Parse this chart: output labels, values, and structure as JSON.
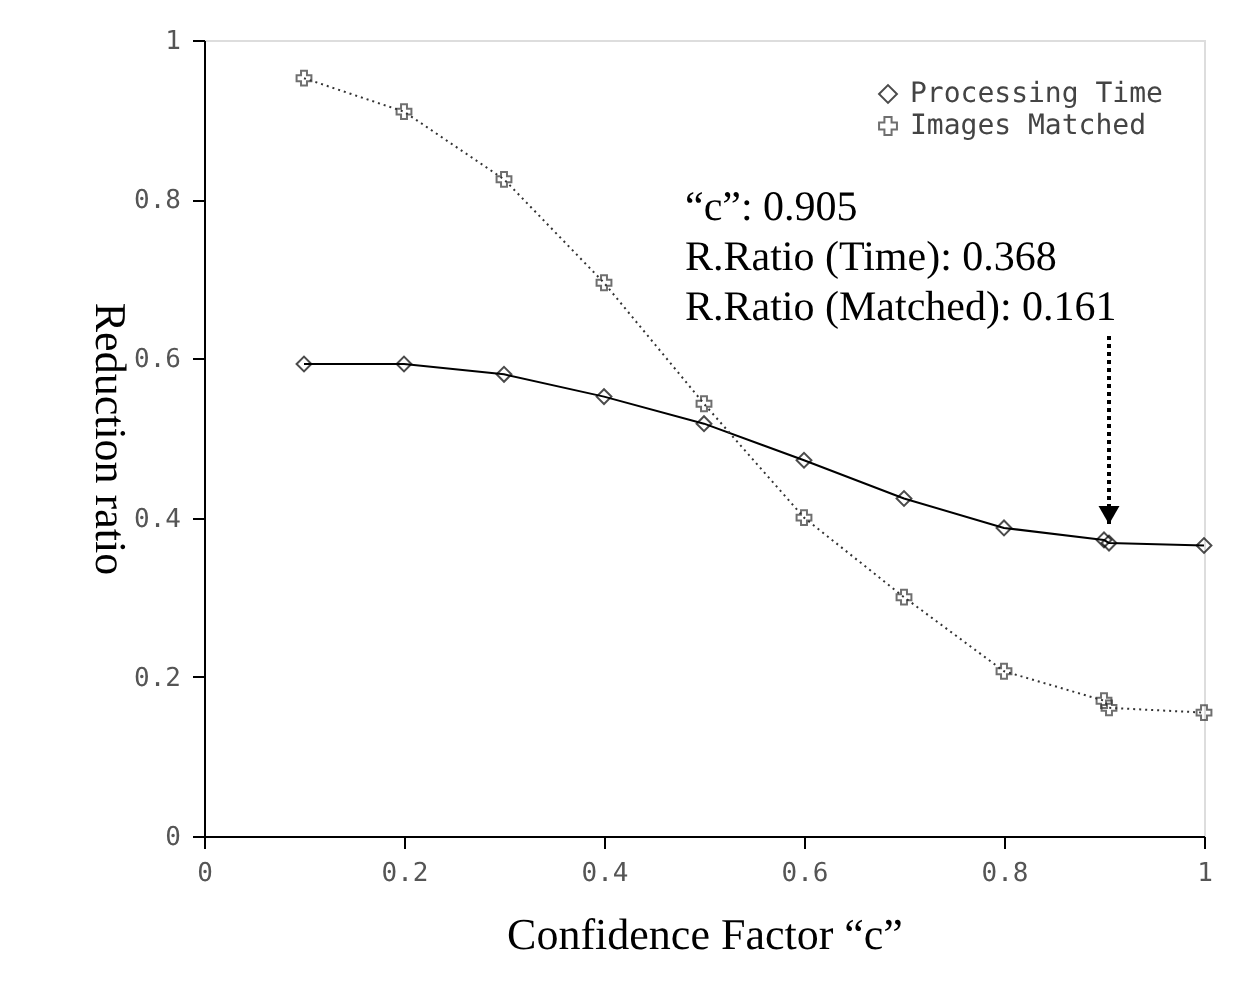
{
  "chart_data": {
    "type": "line",
    "xlabel": "Confidence Factor “c”",
    "ylabel": "Reduction ratio",
    "x": [
      0.1,
      0.2,
      0.3,
      0.4,
      0.5,
      0.6,
      0.7,
      0.8,
      0.9,
      0.905,
      1.0
    ],
    "series": [
      {
        "name": "Processing Time",
        "color": "#000000",
        "marker": "diamond",
        "line_style": "solid",
        "values": [
          0.593,
          0.593,
          0.58,
          0.552,
          0.518,
          0.472,
          0.424,
          0.387,
          0.372,
          0.368,
          0.365
        ]
      },
      {
        "name": "Images Matched",
        "color": "#333333",
        "marker": "cross",
        "line_style": "dotted",
        "values": [
          0.952,
          0.91,
          0.825,
          0.695,
          0.543,
          0.4,
          0.3,
          0.207,
          0.17,
          0.161,
          0.155
        ]
      }
    ],
    "annotations": [
      {
        "text": "“c”: 0.905\nR.Ratio (Time): 0.368\nR.Ratio (Matched): 0.161",
        "x": 0.905,
        "y": 0.368
      }
    ],
    "xlim": [
      0,
      1
    ],
    "ylim": [
      0,
      1
    ],
    "xticks": [
      0,
      0.2,
      0.4,
      0.6,
      0.8,
      1
    ],
    "yticks": [
      0,
      0.2,
      0.4,
      0.6,
      0.8,
      1
    ],
    "grid": false,
    "legend": "top right"
  }
}
